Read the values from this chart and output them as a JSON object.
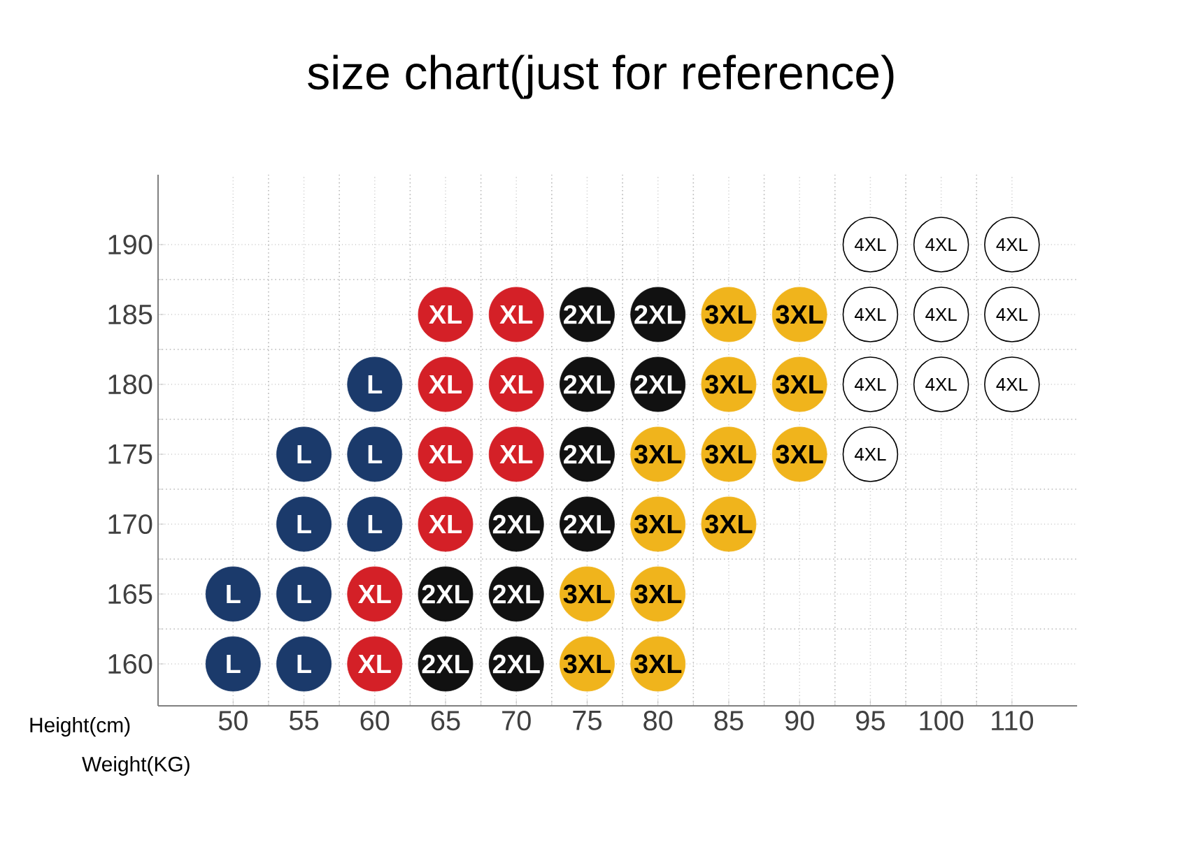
{
  "chart_data": {
    "type": "scatter",
    "title": "size chart(just for reference)",
    "xlabel": "Weight(KG)",
    "ylabel": "Height(cm)",
    "categories": [
      "50",
      "55",
      "60",
      "65",
      "70",
      "75",
      "80",
      "85",
      "90",
      "95",
      "100",
      "110"
    ],
    "ylim": [
      157,
      195
    ],
    "yticks": [
      160,
      165,
      170,
      175,
      180,
      185,
      190
    ],
    "grid": true,
    "marker": "circle",
    "series": [
      {
        "color": "#1b3a6b",
        "x": [
          "60",
          "55",
          "60",
          "55",
          "60",
          "50",
          "55",
          "50",
          "55"
        ],
        "values": [
          180,
          175,
          175,
          170,
          170,
          165,
          165,
          160,
          160
        ]
      },
      {
        "color": "#d42027",
        "x": [
          "65",
          "70",
          "65",
          "70",
          "65",
          "70",
          "65",
          "60",
          "60"
        ],
        "values": [
          185,
          185,
          180,
          180,
          175,
          175,
          170,
          165,
          160
        ]
      },
      {
        "color": "#111111",
        "x": [
          "75",
          "80",
          "75",
          "80",
          "75",
          "70",
          "75",
          "65",
          "70",
          "65",
          "70"
        ],
        "values": [
          185,
          185,
          180,
          180,
          175,
          170,
          170,
          165,
          165,
          160,
          160
        ]
      },
      {
        "color": "#f0b41c",
        "x": [
          "85",
          "90",
          "85",
          "90",
          "80",
          "85",
          "90",
          "80",
          "85",
          "75",
          "80",
          "75",
          "80"
        ],
        "values": [
          185,
          185,
          180,
          180,
          175,
          175,
          175,
          170,
          170,
          165,
          165,
          160,
          160
        ]
      },
      {
        "color": "#ffffff",
        "x": [
          "95",
          "100",
          "110",
          "95",
          "100",
          "110",
          "95",
          "100",
          "110",
          "95"
        ],
        "values": [
          190,
          190,
          190,
          185,
          185,
          185,
          180,
          180,
          180,
          175
        ]
      }
    ],
    "annotations": [
      {
        "text": "4XL",
        "x": "95",
        "y": 190
      },
      {
        "text": "4XL",
        "x": "100",
        "y": 190
      },
      {
        "text": "4XL",
        "x": "110",
        "y": 190
      },
      {
        "text": "XL",
        "x": "65",
        "y": 185
      },
      {
        "text": "XL",
        "x": "70",
        "y": 185
      },
      {
        "text": "2XL",
        "x": "75",
        "y": 185
      },
      {
        "text": "2XL",
        "x": "80",
        "y": 185
      },
      {
        "text": "3XL",
        "x": "85",
        "y": 185
      },
      {
        "text": "3XL",
        "x": "90",
        "y": 185
      },
      {
        "text": "4XL",
        "x": "95",
        "y": 185
      },
      {
        "text": "4XL",
        "x": "100",
        "y": 185
      },
      {
        "text": "4XL",
        "x": "110",
        "y": 185
      },
      {
        "text": "L",
        "x": "60",
        "y": 180
      },
      {
        "text": "XL",
        "x": "65",
        "y": 180
      },
      {
        "text": "XL",
        "x": "70",
        "y": 180
      },
      {
        "text": "2XL",
        "x": "75",
        "y": 180
      },
      {
        "text": "2XL",
        "x": "80",
        "y": 180
      },
      {
        "text": "3XL",
        "x": "85",
        "y": 180
      },
      {
        "text": "3XL",
        "x": "90",
        "y": 180
      },
      {
        "text": "4XL",
        "x": "95",
        "y": 180
      },
      {
        "text": "4XL",
        "x": "100",
        "y": 180
      },
      {
        "text": "4XL",
        "x": "110",
        "y": 180
      },
      {
        "text": "L",
        "x": "55",
        "y": 175
      },
      {
        "text": "L",
        "x": "60",
        "y": 175
      },
      {
        "text": "XL",
        "x": "65",
        "y": 175
      },
      {
        "text": "XL",
        "x": "70",
        "y": 175
      },
      {
        "text": "2XL",
        "x": "75",
        "y": 175
      },
      {
        "text": "3XL",
        "x": "80",
        "y": 175
      },
      {
        "text": "3XL",
        "x": "85",
        "y": 175
      },
      {
        "text": "3XL",
        "x": "90",
        "y": 175
      },
      {
        "text": "4XL",
        "x": "95",
        "y": 175
      },
      {
        "text": "L",
        "x": "55",
        "y": 170
      },
      {
        "text": "L",
        "x": "60",
        "y": 170
      },
      {
        "text": "XL",
        "x": "65",
        "y": 170
      },
      {
        "text": "2XL",
        "x": "70",
        "y": 170
      },
      {
        "text": "2XL",
        "x": "75",
        "y": 170
      },
      {
        "text": "3XL",
        "x": "80",
        "y": 170
      },
      {
        "text": "3XL",
        "x": "85",
        "y": 170
      },
      {
        "text": "L",
        "x": "50",
        "y": 165
      },
      {
        "text": "L",
        "x": "55",
        "y": 165
      },
      {
        "text": "XL",
        "x": "60",
        "y": 165
      },
      {
        "text": "2XL",
        "x": "65",
        "y": 165
      },
      {
        "text": "2XL",
        "x": "70",
        "y": 165
      },
      {
        "text": "3XL",
        "x": "75",
        "y": 165
      },
      {
        "text": "3XL",
        "x": "80",
        "y": 165
      },
      {
        "text": "L",
        "x": "50",
        "y": 160
      },
      {
        "text": "L",
        "x": "55",
        "y": 160
      },
      {
        "text": "XL",
        "x": "60",
        "y": 160
      },
      {
        "text": "2XL",
        "x": "65",
        "y": 160
      },
      {
        "text": "2XL",
        "x": "70",
        "y": 160
      },
      {
        "text": "3XL",
        "x": "75",
        "y": 160
      },
      {
        "text": "3XL",
        "x": "80",
        "y": 160
      }
    ]
  }
}
